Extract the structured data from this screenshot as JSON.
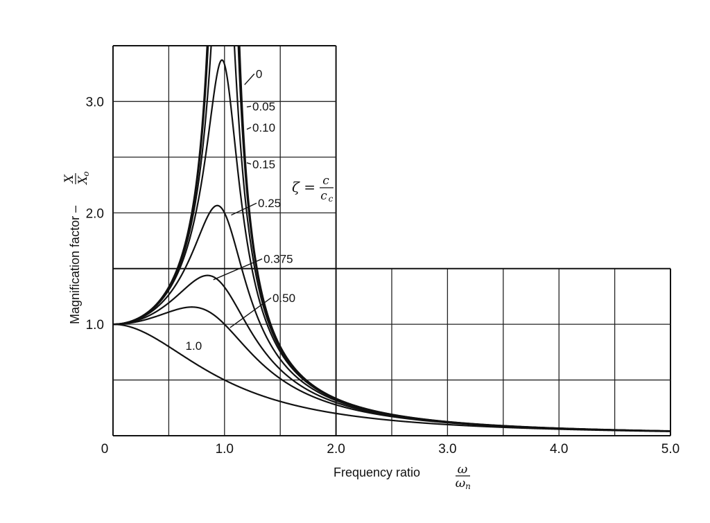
{
  "chart_data": {
    "type": "line",
    "xlabel": "Frequency ratio",
    "xlabel_symbol_num": "ω",
    "xlabel_symbol_den": "ω",
    "xlabel_symbol_den_sub": "n",
    "ylabel": "Magnification factor –",
    "ylabel_symbol_num": "X",
    "ylabel_symbol_den": "X",
    "ylabel_symbol_den_sub": "o",
    "legend_title_lhs": "ζ =",
    "legend_title_num": "c",
    "legend_title_den": "c",
    "legend_title_den_sub": "c",
    "xlim": [
      0,
      5.0
    ],
    "ylim": [
      0,
      3.5
    ],
    "x_tick_labels": [
      "0",
      "1.0",
      "2.0",
      "3.0",
      "4.0",
      "5.0"
    ],
    "x_tick_values": [
      0,
      1.0,
      2.0,
      3.0,
      4.0,
      5.0
    ],
    "y_tick_labels": [
      "1.0",
      "2.0",
      "3.0"
    ],
    "y_tick_values": [
      1.0,
      2.0,
      3.0
    ],
    "grid": true,
    "series": [
      {
        "name": "0",
        "zeta": 0
      },
      {
        "name": "0.05",
        "zeta": 0.05
      },
      {
        "name": "0.10",
        "zeta": 0.1
      },
      {
        "name": "0.15",
        "zeta": 0.15
      },
      {
        "name": "0.25",
        "zeta": 0.25
      },
      {
        "name": "0.375",
        "zeta": 0.375
      },
      {
        "name": "0.50",
        "zeta": 0.5
      },
      {
        "name": "1.0",
        "zeta": 1.0
      }
    ]
  }
}
